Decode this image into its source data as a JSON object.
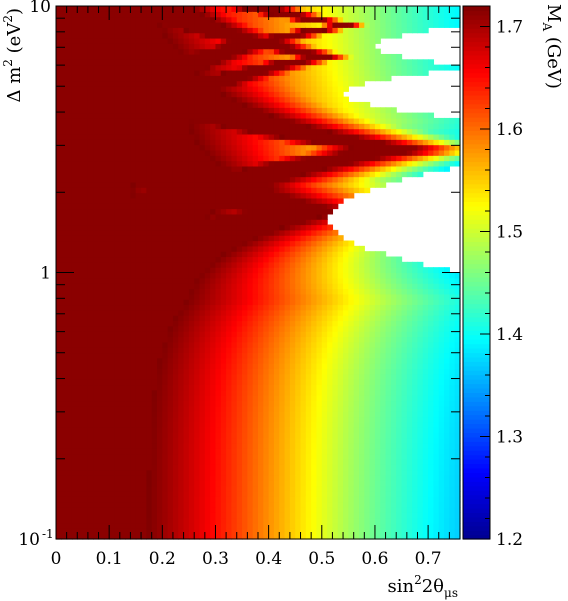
{
  "chart_data": {
    "type": "heatmap",
    "title": "",
    "xlabel": {
      "main": "sin",
      "sup": "2",
      "rest": "2θ",
      "sub": "μs"
    },
    "ylabel": {
      "a": "Δ m",
      "sup1": "2",
      "b": " (eV",
      "sup2": "2",
      "c": ")"
    },
    "zlabel": {
      "main": "M",
      "sub": "A",
      "rest": " (GeV)"
    },
    "x_range": [
      0,
      0.76
    ],
    "y_range": [
      0.1,
      10
    ],
    "y_scale": "log",
    "z_range": [
      1.2,
      1.72
    ],
    "x_ticks": [
      {
        "value": 0,
        "label": "0"
      },
      {
        "value": 0.1,
        "label": "0.1"
      },
      {
        "value": 0.2,
        "label": "0.2"
      },
      {
        "value": 0.3,
        "label": "0.3"
      },
      {
        "value": 0.4,
        "label": "0.4"
      },
      {
        "value": 0.5,
        "label": "0.5"
      },
      {
        "value": 0.6,
        "label": "0.6"
      },
      {
        "value": 0.7,
        "label": "0.7"
      }
    ],
    "y_ticks": [
      {
        "value": 0.1,
        "label": "10",
        "sup": "-1"
      },
      {
        "value": 1,
        "label": "1",
        "sup": ""
      },
      {
        "value": 10,
        "label": "10",
        "sup": ""
      }
    ],
    "z_ticks": [
      {
        "value": 1.2,
        "label": "1.2"
      },
      {
        "value": 1.3,
        "label": "1.3"
      },
      {
        "value": 1.4,
        "label": "1.4"
      },
      {
        "value": 1.5,
        "label": "1.5"
      },
      {
        "value": 1.6,
        "label": "1.6"
      },
      {
        "value": 1.7,
        "label": "1.7"
      }
    ],
    "colormap": [
      "#00008f",
      "#0000ff",
      "#0080ff",
      "#00ffff",
      "#80ff80",
      "#ffff00",
      "#ff8000",
      "#ff0000",
      "#800000"
    ],
    "max_color": "#8b0000",
    "grid": false,
    "bins": {
      "nx": 76,
      "ny": 100
    },
    "ridges": [
      {
        "dm2": 1.7,
        "sin2_peak": 0.45,
        "width": 0.21
      },
      {
        "dm2": 2.9,
        "sin2_peak": 0.64,
        "width": 0.13
      },
      {
        "dm2": 6.5,
        "sin2_peak": 0.5,
        "width": 0.05
      },
      {
        "dm2": 8.5,
        "sin2_peak": 0.54,
        "width": 0.035
      }
    ],
    "undefined_regions": [
      {
        "dm2_range": [
          1.0,
          2.5
        ],
        "sin2_min_at_center": 0.51
      },
      {
        "dm2_range": [
          3.8,
          5.8
        ],
        "sin2_min_at_center": 0.54
      },
      {
        "dm2_range": [
          6.0,
          8.4
        ],
        "sin2_min_at_center": 0.6
      }
    ]
  }
}
